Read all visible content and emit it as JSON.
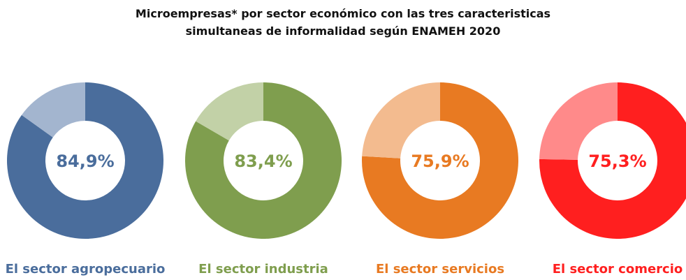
{
  "title": [
    "Microempresas* por sector económico con las tres caracteristicas",
    "simultaneas de informalidad según ENAMEH 2020"
  ],
  "chart_data": [
    {
      "type": "donut",
      "label": "El sector agropecuario",
      "values": [
        84.9,
        15.1
      ],
      "value_labels": [
        "84,9%",
        null
      ],
      "colors": [
        "#4a6d9c",
        "#a3b5cf"
      ]
    },
    {
      "type": "donut",
      "label": "El sector industria",
      "values": [
        83.4,
        16.6
      ],
      "value_labels": [
        "83,4%",
        null
      ],
      "colors": [
        "#7f9e4e",
        "#c2d1a7"
      ]
    },
    {
      "type": "donut",
      "label": "El sector servicios",
      "values": [
        75.9,
        24.1
      ],
      "value_labels": [
        "75,9%",
        null
      ],
      "colors": [
        "#e87a22",
        "#f3bb8f"
      ]
    },
    {
      "type": "donut",
      "label": "El sector comercio",
      "values": [
        75.3,
        24.7
      ],
      "value_labels": [
        "75,3%",
        null
      ],
      "colors": [
        "#ff1f1f",
        "#ff8a8a"
      ]
    }
  ]
}
